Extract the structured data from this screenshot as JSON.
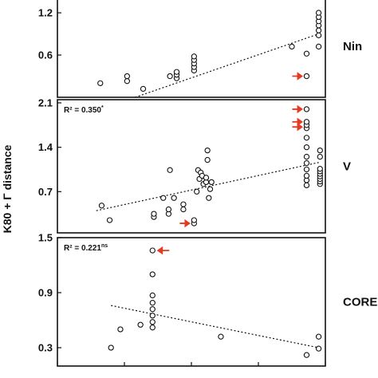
{
  "figure": {
    "ylabel": "K80 + Γ distance",
    "colors": {
      "frame": "#111111",
      "marker": "#111111",
      "arrow": "#e53a22",
      "trend": "#111111"
    }
  },
  "chart_data": [
    {
      "type": "scatter",
      "panel_label": "Nin",
      "r2_label": {
        "text": "",
        "sup": ""
      },
      "ylim": [
        0.0,
        1.45
      ],
      "yticks": [
        0.6,
        1.2
      ],
      "ytick_labels": [
        "0.6",
        "1.2"
      ],
      "xlim": [
        0,
        1000
      ],
      "points": [
        [
          160,
          0.2
        ],
        [
          260,
          0.23
        ],
        [
          260,
          0.3
        ],
        [
          320,
          0.12
        ],
        [
          420,
          0.3
        ],
        [
          445,
          0.27
        ],
        [
          445,
          0.32
        ],
        [
          445,
          0.36
        ],
        [
          510,
          0.38
        ],
        [
          510,
          0.43
        ],
        [
          510,
          0.48
        ],
        [
          510,
          0.53
        ],
        [
          510,
          0.58
        ],
        [
          875,
          0.72
        ],
        [
          930,
          0.62
        ],
        [
          975,
          0.72
        ],
        [
          975,
          0.88
        ],
        [
          975,
          0.95
        ],
        [
          975,
          1.02
        ],
        [
          975,
          1.08
        ],
        [
          975,
          1.14
        ],
        [
          975,
          1.2
        ],
        [
          930,
          0.3
        ]
      ],
      "trend": {
        "x": [
          290,
          975
        ],
        "y": [
          0.0,
          0.9
        ]
      },
      "arrows": [
        {
          "x": 930,
          "y": 0.3,
          "direction": "right"
        }
      ]
    },
    {
      "type": "scatter",
      "panel_label": "V",
      "r2_label": {
        "text": "R² = 0.350",
        "sup": "*"
      },
      "ylim": [
        0.05,
        2.15
      ],
      "yticks": [
        0.7,
        1.4,
        2.1
      ],
      "ytick_labels": [
        "0.7",
        "1.4",
        "2.1"
      ],
      "xlim": [
        0,
        1000
      ],
      "points": [
        [
          165,
          0.48
        ],
        [
          195,
          0.25
        ],
        [
          360,
          0.3
        ],
        [
          360,
          0.35
        ],
        [
          395,
          0.6
        ],
        [
          415,
          0.35
        ],
        [
          415,
          0.42
        ],
        [
          420,
          1.04
        ],
        [
          435,
          0.6
        ],
        [
          470,
          0.42
        ],
        [
          470,
          0.5
        ],
        [
          510,
          0.2
        ],
        [
          510,
          0.25
        ],
        [
          520,
          0.7
        ],
        [
          525,
          1.04
        ],
        [
          530,
          0.9
        ],
        [
          535,
          1.0
        ],
        [
          540,
          0.95
        ],
        [
          545,
          0.82
        ],
        [
          555,
          0.85
        ],
        [
          555,
          0.92
        ],
        [
          560,
          1.35
        ],
        [
          560,
          1.2
        ],
        [
          565,
          0.6
        ],
        [
          570,
          0.74
        ],
        [
          575,
          0.85
        ],
        [
          930,
          0.8
        ],
        [
          930,
          0.88
        ],
        [
          930,
          0.95
        ],
        [
          930,
          1.05
        ],
        [
          930,
          1.15
        ],
        [
          930,
          1.25
        ],
        [
          930,
          1.4
        ],
        [
          930,
          1.55
        ],
        [
          930,
          1.7
        ],
        [
          930,
          1.75
        ],
        [
          930,
          1.8
        ],
        [
          930,
          2.0
        ],
        [
          980,
          0.82
        ],
        [
          980,
          0.86
        ],
        [
          980,
          0.9
        ],
        [
          980,
          0.94
        ],
        [
          980,
          0.98
        ],
        [
          980,
          1.02
        ],
        [
          980,
          1.06
        ],
        [
          980,
          1.25
        ],
        [
          980,
          1.35
        ]
      ],
      "trend": {
        "x": [
          145,
          975
        ],
        "y": [
          0.4,
          1.16
        ]
      },
      "arrows": [
        {
          "x": 930,
          "y": 2.0,
          "direction": "right"
        },
        {
          "x": 930,
          "y": 1.8,
          "direction": "right"
        },
        {
          "x": 930,
          "y": 1.72,
          "direction": "right"
        },
        {
          "x": 510,
          "y": 0.2,
          "direction": "right"
        }
      ]
    },
    {
      "type": "scatter",
      "panel_label": "CORE",
      "r2_label": {
        "text": "R² = 0.221",
        "sup": "ns"
      },
      "ylim": [
        0.1,
        1.5
      ],
      "yticks": [
        0.3,
        0.9,
        1.5
      ],
      "ytick_labels": [
        "0.3",
        "0.9",
        "1.5"
      ],
      "xlim": [
        0,
        1000
      ],
      "points": [
        [
          200,
          0.3
        ],
        [
          235,
          0.5
        ],
        [
          310,
          0.55
        ],
        [
          355,
          0.52
        ],
        [
          355,
          0.58
        ],
        [
          355,
          0.65
        ],
        [
          355,
          0.72
        ],
        [
          355,
          0.79
        ],
        [
          355,
          0.87
        ],
        [
          355,
          1.1
        ],
        [
          355,
          1.36
        ],
        [
          610,
          0.42
        ],
        [
          930,
          0.22
        ],
        [
          975,
          0.29
        ],
        [
          975,
          0.42
        ]
      ],
      "trend": {
        "x": [
          200,
          975
        ],
        "y": [
          0.76,
          0.3
        ]
      },
      "arrows": [
        {
          "x": 355,
          "y": 1.36,
          "direction": "left"
        }
      ]
    }
  ]
}
